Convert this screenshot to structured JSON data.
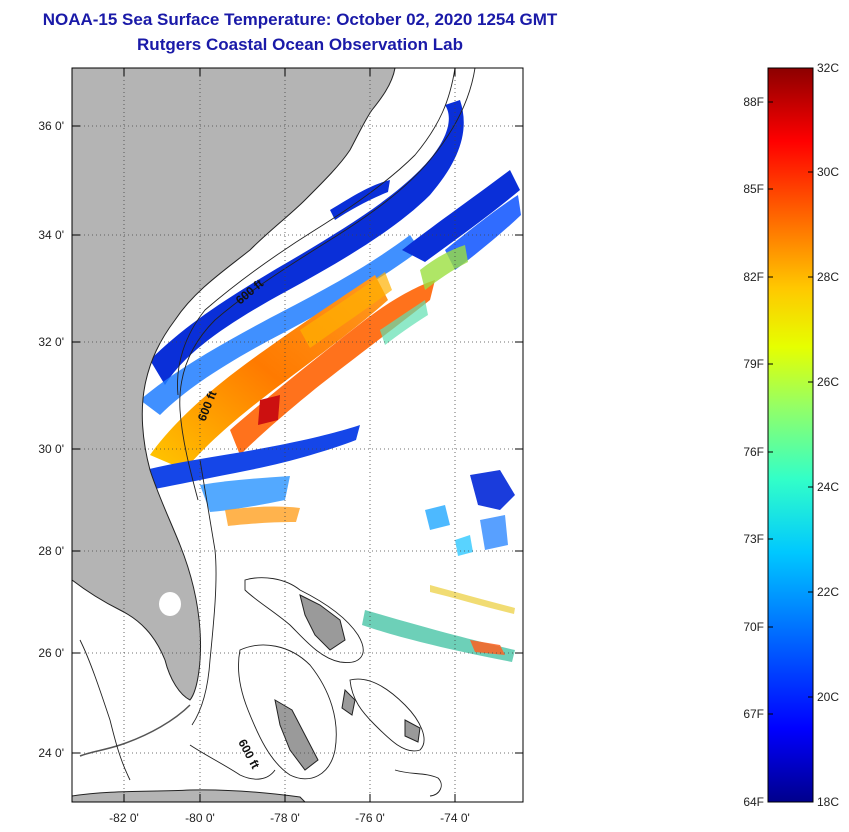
{
  "header": {
    "title": "NOAA-15 Sea Surface Temperature:  October 02, 2020 1254 GMT",
    "subtitle": "Rutgers Coastal Ocean Observation Lab"
  },
  "map": {
    "lon_labels": [
      "-82 0'",
      "-80 0'",
      "-78 0'",
      "-76 0'",
      "-74 0'"
    ],
    "lat_labels": [
      "36 0'",
      "34 0'",
      "32 0'",
      "30 0'",
      "28 0'",
      "26 0'",
      "24 0'"
    ],
    "contour_labels": [
      "600 ft",
      "600 ft",
      "600 ft"
    ],
    "land_color": "#b4b4b4",
    "water_color": "#ffffff"
  },
  "colorbar": {
    "celsius_labels": [
      "32C",
      "30C",
      "28C",
      "26C",
      "24C",
      "22C",
      "20C",
      "18C"
    ],
    "fahrenheit_labels": [
      "88F",
      "85F",
      "82F",
      "79F",
      "76F",
      "73F",
      "70F",
      "67F",
      "64F"
    ],
    "min_c": 18,
    "max_c": 32,
    "colors": [
      "#00008c",
      "#0000ff",
      "#0064ff",
      "#00c8ff",
      "#32ffc8",
      "#96ff64",
      "#e6ff00",
      "#ffc800",
      "#ff6400",
      "#ff0000",
      "#8c0000"
    ]
  }
}
